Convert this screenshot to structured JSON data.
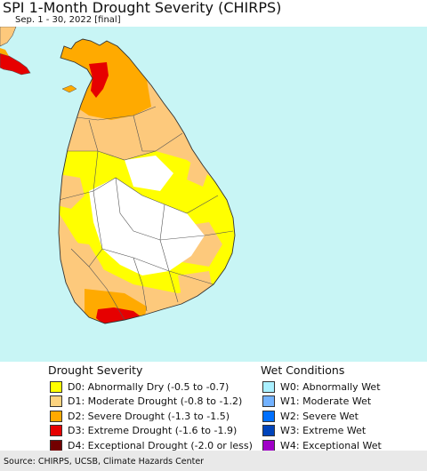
{
  "header": {
    "title": "SPI 1-Month Drought Severity (CHIRPS)",
    "subtitle": "Sep. 1 - 30, 2022 [final]"
  },
  "map": {
    "ocean_color": "#c8f5f5",
    "land_base_color": "#fdc97c",
    "border_color": "#555555"
  },
  "legend": {
    "drought": {
      "heading": "Drought Severity",
      "items": [
        {
          "code": "D0",
          "label": "D0: Abnormally Dry (-0.5 to -0.7)",
          "color": "#ffff00"
        },
        {
          "code": "D1",
          "label": "D1: Moderate Drought (-0.8 to -1.2)",
          "color": "#fcd37f"
        },
        {
          "code": "D2",
          "label": "D2: Severe Drought (-1.3 to -1.5)",
          "color": "#ffaa00"
        },
        {
          "code": "D3",
          "label": "D3: Extreme Drought (-1.6 to -1.9)",
          "color": "#e60000"
        },
        {
          "code": "D4",
          "label": "D4: Exceptional Drought (-2.0 or less)",
          "color": "#730000"
        }
      ]
    },
    "wet": {
      "heading": "Wet Conditions",
      "items": [
        {
          "code": "W0",
          "label": "W0: Abnormally Wet",
          "color": "#aaf0ff"
        },
        {
          "code": "W1",
          "label": "W1: Moderate Wet",
          "color": "#73b2ff"
        },
        {
          "code": "W2",
          "label": "W2: Severe Wet",
          "color": "#0070ff"
        },
        {
          "code": "W3",
          "label": "W3: Extreme Wet",
          "color": "#0044bb"
        },
        {
          "code": "W4",
          "label": "W4: Exceptional Wet",
          "color": "#a000c8"
        }
      ]
    }
  },
  "footer": {
    "source": "Source: CHIRPS, UCSB, Climate Hazards Center"
  }
}
